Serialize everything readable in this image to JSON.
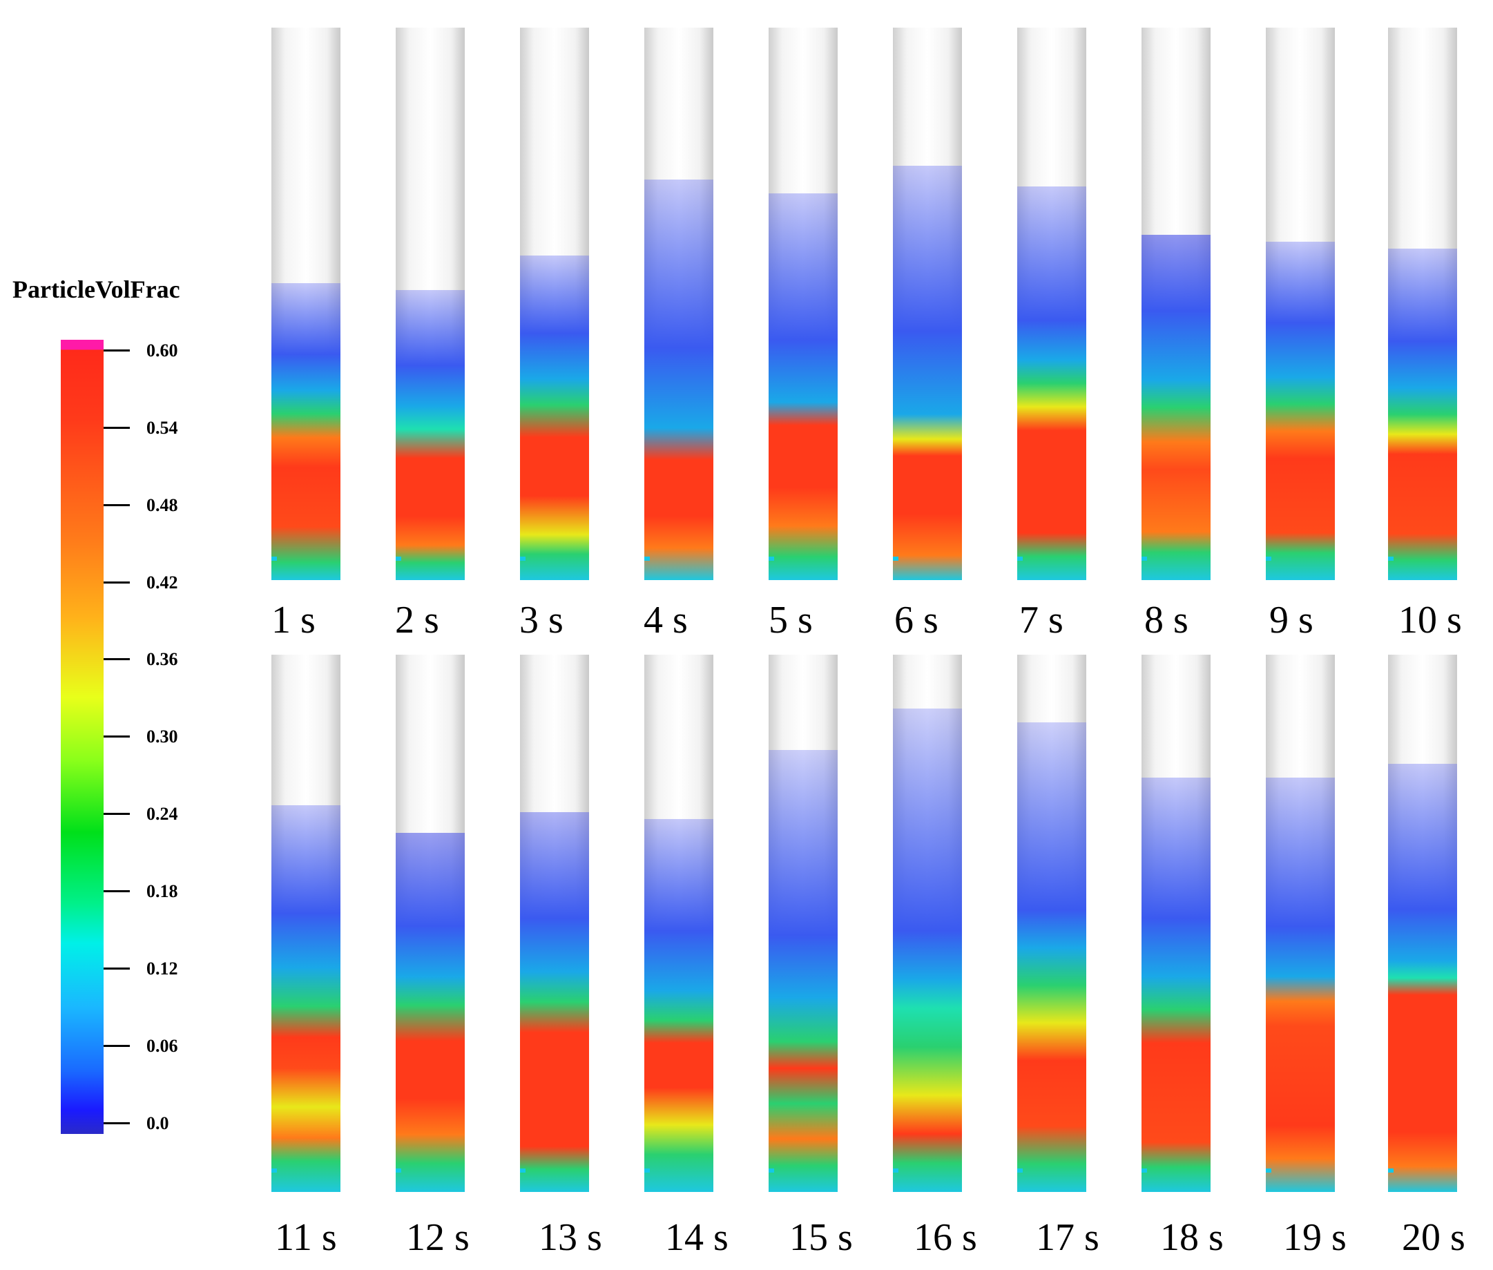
{
  "colorbar": {
    "title": "ParticleVolFrac",
    "ticks": [
      "0.60",
      "0.54",
      "0.48",
      "0.42",
      "0.36",
      "0.30",
      "0.24",
      "0.18",
      "0.12",
      "0.06",
      "0.0"
    ]
  },
  "snapshots_row1": [
    "1 s",
    "2 s",
    "3 s",
    "4 s",
    "5 s",
    "6 s",
    "7 s",
    "8 s",
    "9 s",
    "10 s"
  ],
  "snapshots_row2": [
    "11 s",
    "12 s",
    "13 s",
    "14 s",
    "15 s",
    "16 s",
    "17 s",
    "18 s",
    "19 s",
    "20 s"
  ]
}
